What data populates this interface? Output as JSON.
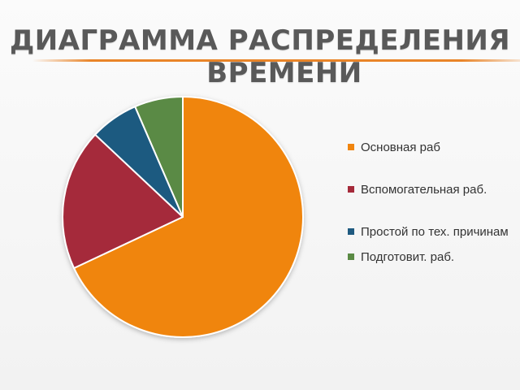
{
  "slide": {
    "title_line1": "ДИАГРАММА РАСПРЕДЕЛЕНИЯ",
    "title_line2": "ВРЕМЕНИ",
    "accent_color": "#e98428"
  },
  "chart_data": {
    "type": "pie",
    "title": "",
    "categories": [
      "Основная раб",
      "Вспомогательная раб.",
      "Простой  по тех. причинам",
      "Подготовит. раб."
    ],
    "values": [
      68,
      19,
      6.5,
      6.5
    ],
    "unit": "",
    "colors": [
      "#f0850f",
      "#a52a3a",
      "#1f5a80",
      "#5a8a44"
    ],
    "legend_position": "right",
    "start_angle_deg": 0,
    "direction": "clockwise"
  }
}
